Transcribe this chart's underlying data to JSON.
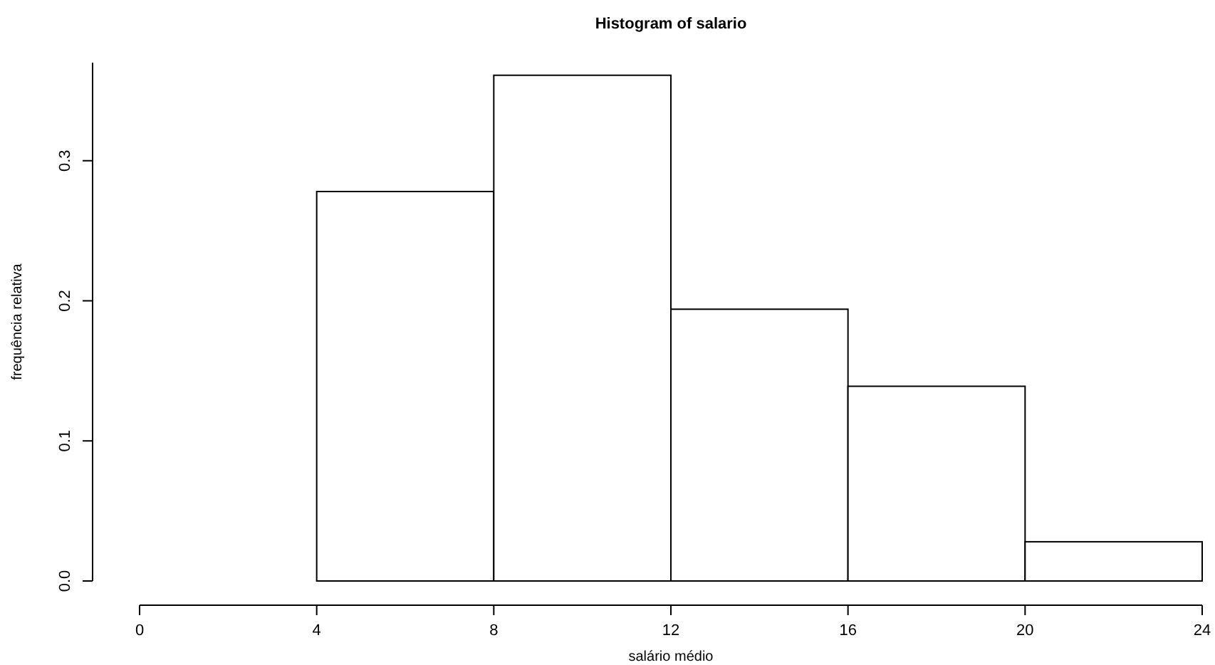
{
  "chart_data": {
    "type": "histogram",
    "title": "Histogram of salario",
    "xlabel": "salário médio",
    "ylabel": "frequência relativa",
    "bins": [
      4,
      8,
      12,
      16,
      20,
      24
    ],
    "values": [
      0.278,
      0.361,
      0.194,
      0.139,
      0.028
    ],
    "color": "#ffffff",
    "xlim": [
      0,
      24
    ],
    "xticks": [
      0,
      4,
      8,
      12,
      16,
      20,
      24
    ],
    "ylim": [
      0,
      0.37
    ],
    "yticks": [
      {
        "value": 0,
        "label": "0.0"
      },
      {
        "value": 0.1,
        "label": "0.1"
      },
      {
        "value": 0.2,
        "label": "0.2"
      },
      {
        "value": 0.3,
        "label": "0.3"
      }
    ],
    "grid": false
  }
}
